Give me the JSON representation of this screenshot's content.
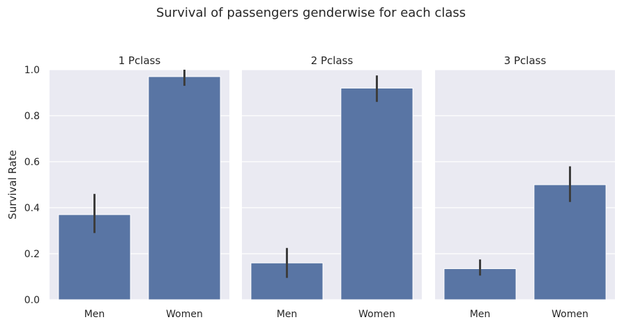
{
  "chart_data": {
    "type": "bar",
    "title": "Survival of passengers genderwise for each class",
    "ylabel": "Survival Rate",
    "xlabel": "",
    "ylim": [
      0,
      1
    ],
    "yticks": [
      "0.0",
      "0.2",
      "0.4",
      "0.6",
      "0.8",
      "1.0"
    ],
    "categories": [
      "Men",
      "Women"
    ],
    "grid": true,
    "bar_color": "#5975a4",
    "facets": [
      {
        "title": "1 Pclass",
        "values": [
          0.37,
          0.97
        ],
        "ci_low": [
          0.29,
          0.93
        ],
        "ci_high": [
          0.46,
          1.0
        ]
      },
      {
        "title": "2 Pclass",
        "values": [
          0.16,
          0.92
        ],
        "ci_low": [
          0.095,
          0.86
        ],
        "ci_high": [
          0.225,
          0.975
        ]
      },
      {
        "title": "3 Pclass",
        "values": [
          0.135,
          0.5
        ],
        "ci_low": [
          0.105,
          0.425
        ],
        "ci_high": [
          0.175,
          0.58
        ]
      }
    ]
  }
}
